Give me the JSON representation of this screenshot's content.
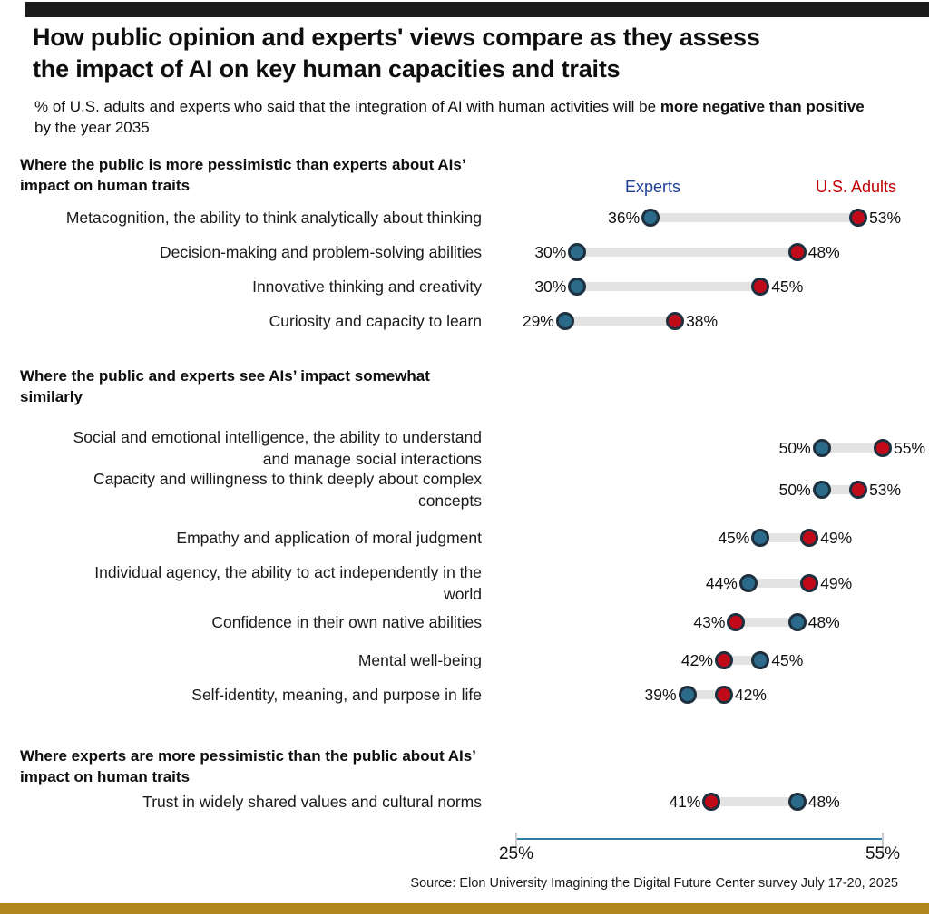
{
  "page": {
    "title_line1": "How public opinion and experts' views compare as they assess",
    "title_line2": "the impact of AI on key human capacities and traits",
    "subtitle_prefix": "% of U.S. adults and experts who said that the integration of AI with human activities will be ",
    "subtitle_bold": "more negative than positive",
    "subtitle_suffix": " by the year 2035",
    "source": "Source: Elon University Imagining the Digital Future Center survey July 17-20, 2025"
  },
  "legend": {
    "experts_label": "Experts",
    "adults_label": "U.S. Adults"
  },
  "colors": {
    "experts_dot": "#2b6a8a",
    "adults_dot": "#c00a1a",
    "dot_border": "#1e2f3d",
    "experts_text": "#21409a",
    "adults_text": "#c00000",
    "connector": "#e3e3e3",
    "axis_line": "#2e7ca8",
    "top_bar": "#1c1c1c",
    "bottom_bar": "#b0861c"
  },
  "chart_data": {
    "type": "dumbbell",
    "unit": "%",
    "axis": {
      "min": 25,
      "max": 55,
      "min_label": "25%",
      "max_label": "55%"
    },
    "series_names": [
      "Experts",
      "U.S. Adults"
    ],
    "sections": [
      {
        "header": "Where the public is more pessimistic than experts about AIs’\nimpact on human traits",
        "rows": [
          {
            "label": "Metacognition, the ability to think analytically about thinking",
            "experts": 36,
            "adults": 53
          },
          {
            "label": "Decision-making and problem-solving abilities",
            "experts": 30,
            "adults": 48
          },
          {
            "label": "Innovative thinking and creativity",
            "experts": 30,
            "adults": 45
          },
          {
            "label": "Curiosity and capacity to learn",
            "experts": 29,
            "adults": 38
          }
        ]
      },
      {
        "header": "Where the public and experts see AIs’ impact somewhat\nsimilarly",
        "rows": [
          {
            "label": "Social and emotional intelligence, the ability to understand\nand manage social interactions",
            "experts": 50,
            "adults": 55
          },
          {
            "label": "Capacity and willingness to think deeply about complex\nconcepts",
            "experts": 50,
            "adults": 53
          },
          {
            "label": "Empathy and application of moral judgment",
            "experts": 45,
            "adults": 49
          },
          {
            "label": "Individual agency, the ability to act independently in the\nworld",
            "experts": 44,
            "adults": 49
          },
          {
            "label": "Confidence in their own native abilities",
            "experts": 48,
            "adults": 43
          },
          {
            "label": "Mental well-being",
            "experts": 45,
            "adults": 42
          },
          {
            "label": "Self-identity, meaning, and purpose in life",
            "experts": 39,
            "adults": 42
          }
        ]
      },
      {
        "header": "Where experts are more pessimistic than the public about AIs’\nimpact on human traits",
        "rows": [
          {
            "label": "Trust in widely shared values and cultural norms",
            "experts": 48,
            "adults": 41
          }
        ]
      }
    ]
  }
}
